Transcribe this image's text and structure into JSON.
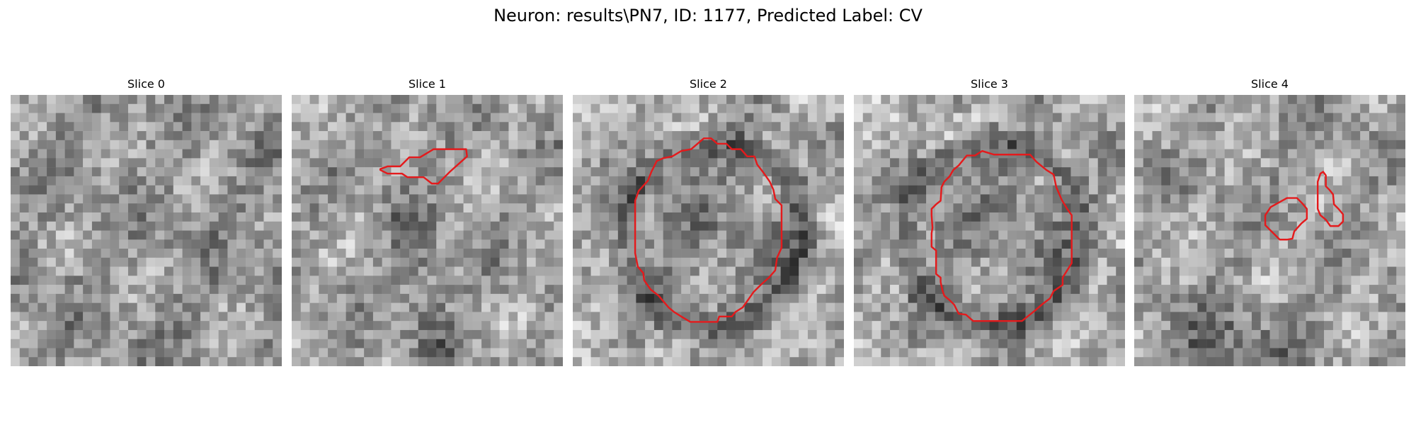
{
  "figure": {
    "title": "Neuron: results\\PN7, ID: 1177, Predicted Label: CV"
  },
  "colors": {
    "background": "#ffffff",
    "contour": "#e41a1c",
    "colormap": "gray"
  },
  "panels": [
    {
      "title": "Slice 0",
      "texture": "mottled"
    },
    {
      "title": "Slice 1",
      "texture": "textured"
    },
    {
      "title": "Slice 2",
      "texture": "vesicle-ring"
    },
    {
      "title": "Slice 3",
      "texture": "vesicle-ring"
    },
    {
      "title": "Slice 4",
      "texture": "textured-dark-bottom"
    }
  ]
}
